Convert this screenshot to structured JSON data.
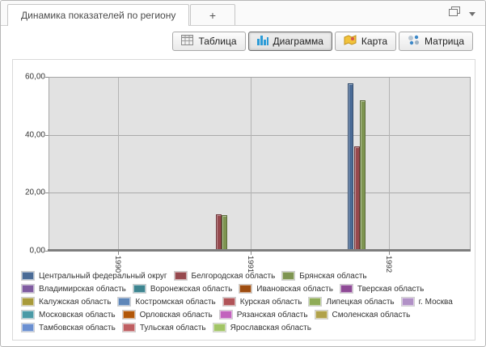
{
  "window": {
    "tab_title": "Динамика показателей по региону",
    "new_tab_label": "+"
  },
  "toolbar": {
    "buttons": [
      {
        "label": "Таблица",
        "icon": "table-icon",
        "active": false
      },
      {
        "label": "Диаграмма",
        "icon": "bar-chart-icon",
        "active": true
      },
      {
        "label": "Карта",
        "icon": "map-icon",
        "active": false
      },
      {
        "label": "Матрица",
        "icon": "matrix-icon",
        "active": false
      }
    ]
  },
  "chart_data": {
    "type": "bar",
    "title": "",
    "categories": [
      "1990",
      "1991",
      "1992"
    ],
    "y_ticks": [
      "60,00",
      "40,00",
      "20,00",
      "0,00"
    ],
    "ylim": [
      0,
      60
    ],
    "grid": true,
    "legend_position": "bottom",
    "series": [
      {
        "name": "Центральный федеральный округ",
        "color": "#4a6b96",
        "values": [
          null,
          null,
          58
        ]
      },
      {
        "name": "Белгородская область",
        "color": "#96494e",
        "values": [
          null,
          12.5,
          36
        ]
      },
      {
        "name": "Брянская область",
        "color": "#7e9551",
        "values": [
          null,
          12,
          52
        ]
      },
      {
        "name": "Владимирская область",
        "color": "#7f5ba0",
        "values": [
          null,
          null,
          null
        ]
      },
      {
        "name": "Воронежская область",
        "color": "#3e8590",
        "values": [
          null,
          null,
          null
        ]
      },
      {
        "name": "Ивановская область",
        "color": "#9e4d10",
        "values": [
          null,
          null,
          null
        ]
      },
      {
        "name": "Тверская область",
        "color": "#8e4a96",
        "values": [
          null,
          null,
          null
        ]
      },
      {
        "name": "Калужская область",
        "color": "#a89a3a",
        "values": [
          null,
          null,
          null
        ]
      },
      {
        "name": "Костромская область",
        "color": "#5e86b8",
        "values": [
          null,
          null,
          null
        ]
      },
      {
        "name": "Курская область",
        "color": "#b05458",
        "values": [
          null,
          null,
          null
        ]
      },
      {
        "name": "Липецкая область",
        "color": "#8fac57",
        "values": [
          null,
          null,
          null
        ]
      },
      {
        "name": "г. Москва",
        "color": "#b191c6",
        "values": [
          null,
          null,
          null
        ]
      },
      {
        "name": "Московская область",
        "color": "#4b9aa6",
        "values": [
          null,
          null,
          null
        ]
      },
      {
        "name": "Орловская область",
        "color": "#b25708",
        "values": [
          null,
          null,
          null
        ]
      },
      {
        "name": "Рязанская область",
        "color": "#c263bd",
        "values": [
          null,
          null,
          null
        ]
      },
      {
        "name": "Смоленская область",
        "color": "#b1a24a",
        "values": [
          null,
          null,
          null
        ]
      },
      {
        "name": "Тамбовская область",
        "color": "#6a8fd1",
        "values": [
          null,
          null,
          null
        ]
      },
      {
        "name": "Тульская область",
        "color": "#bf5f62",
        "values": [
          null,
          null,
          null
        ]
      },
      {
        "name": "Ярославская область",
        "color": "#a2c566",
        "values": [
          null,
          null,
          null
        ]
      }
    ]
  }
}
